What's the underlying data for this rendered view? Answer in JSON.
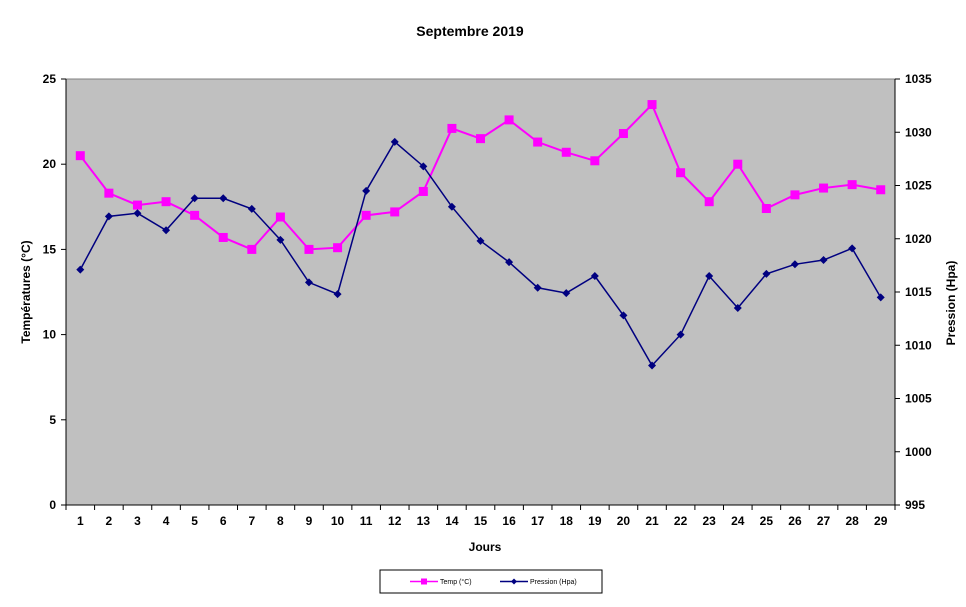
{
  "chart_data": {
    "type": "line",
    "title": "Septembre 2019",
    "xlabel": "Jours",
    "ylabel_left": "Températures (°C)",
    "ylabel_right": "Pression (Hpa)",
    "x": [
      1,
      2,
      3,
      4,
      5,
      6,
      7,
      8,
      9,
      10,
      11,
      12,
      13,
      14,
      15,
      16,
      17,
      18,
      19,
      20,
      21,
      22,
      23,
      24,
      25,
      26,
      27,
      28,
      29
    ],
    "y_left_lim": [
      0,
      25
    ],
    "y_left_ticks": [
      0,
      5,
      10,
      15,
      20,
      25
    ],
    "y_right_lim": [
      995,
      1035
    ],
    "y_right_ticks": [
      995,
      1000,
      1005,
      1010,
      1015,
      1020,
      1025,
      1030,
      1035
    ],
    "plot_background": "#c0c0c0",
    "grid": false,
    "legend_position": "bottom",
    "series": [
      {
        "name": "Temp (°C)",
        "axis": "left",
        "color": "#ff00ff",
        "marker": "square",
        "values": [
          20.5,
          18.3,
          17.6,
          17.8,
          17.0,
          15.7,
          15.0,
          16.9,
          15.0,
          15.1,
          17.0,
          17.2,
          18.4,
          22.1,
          21.5,
          22.6,
          21.3,
          20.7,
          20.2,
          21.8,
          23.5,
          19.5,
          17.8,
          20.0,
          17.4,
          18.2,
          18.6,
          18.8,
          18.5
        ]
      },
      {
        "name": "Pression (Hpa)",
        "axis": "right",
        "color": "#000080",
        "marker": "diamond",
        "values": [
          1017.1,
          1022.1,
          1022.4,
          1020.8,
          1023.8,
          1023.8,
          1022.8,
          1019.9,
          1015.9,
          1014.8,
          1024.5,
          1029.1,
          1026.8,
          1023.0,
          1019.8,
          1017.8,
          1015.4,
          1014.9,
          1016.5,
          1012.8,
          1008.1,
          1011.0,
          1016.5,
          1013.5,
          1016.7,
          1017.6,
          1018.0,
          1019.1,
          1014.5
        ]
      }
    ]
  }
}
